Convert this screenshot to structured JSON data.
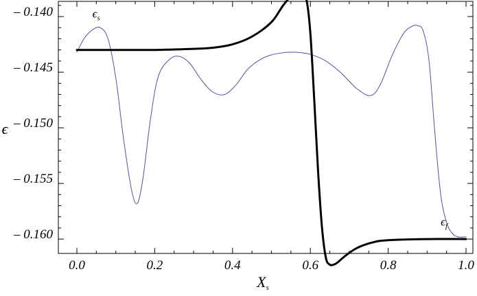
{
  "chart_data": {
    "type": "line",
    "xlabel": "X",
    "xlabel_sub": "s",
    "ylabel": "ϵ",
    "xlim": [
      0.0,
      1.0
    ],
    "ylim": [
      -0.1615,
      -0.1395
    ],
    "xticks": [
      "0.0",
      "0.2",
      "0.4",
      "0.6",
      "0.8",
      "1.0"
    ],
    "xtick_values": [
      0.0,
      0.2,
      0.4,
      0.6,
      0.8,
      1.0
    ],
    "yticks": [
      "– 0.140",
      "– 0.145",
      "– 0.150",
      "– 0.155",
      "– 0.160"
    ],
    "ytick_values": [
      -0.14,
      -0.145,
      -0.15,
      -0.155,
      -0.16
    ],
    "grid": false,
    "series": [
      {
        "color": "#4b4fa8",
        "width": 1,
        "x": [
          0.0,
          0.02,
          0.04,
          0.06,
          0.08,
          0.1,
          0.12,
          0.14,
          0.155,
          0.17,
          0.19,
          0.21,
          0.24,
          0.265,
          0.29,
          0.32,
          0.35,
          0.38,
          0.41,
          0.44,
          0.48,
          0.52,
          0.56,
          0.6,
          0.64,
          0.68,
          0.72,
          0.755,
          0.78,
          0.81,
          0.84,
          0.86,
          0.875,
          0.89,
          0.905,
          0.92,
          0.935,
          0.95,
          0.965,
          0.98,
          1.0
        ],
        "y": [
          -0.1437,
          -0.1424,
          -0.1417,
          -0.1415,
          -0.1425,
          -0.146,
          -0.1515,
          -0.156,
          -0.1573,
          -0.155,
          -0.1495,
          -0.1458,
          -0.1443,
          -0.1441,
          -0.1447,
          -0.1462,
          -0.1473,
          -0.1475,
          -0.1466,
          -0.1452,
          -0.1442,
          -0.1438,
          -0.1437,
          -0.1439,
          -0.1445,
          -0.1456,
          -0.147,
          -0.1476,
          -0.1466,
          -0.144,
          -0.142,
          -0.1414,
          -0.1413,
          -0.1418,
          -0.1445,
          -0.151,
          -0.1565,
          -0.159,
          -0.16,
          -0.1603,
          -0.1603
        ]
      },
      {
        "color": "#000000",
        "width": 3,
        "x": [
          0.0,
          0.1,
          0.2,
          0.3,
          0.35,
          0.4,
          0.45,
          0.5,
          0.53,
          0.555,
          0.575,
          0.59,
          0.6,
          0.61,
          0.62,
          0.63,
          0.64,
          0.65,
          0.66,
          0.67,
          0.69,
          0.72,
          0.76,
          0.8,
          0.9,
          1.0
        ],
        "y": [
          -0.1435,
          -0.1435,
          -0.1435,
          -0.1434,
          -0.1433,
          -0.143,
          -0.1423,
          -0.141,
          -0.1395,
          -0.1385,
          -0.1382,
          -0.139,
          -0.142,
          -0.148,
          -0.1545,
          -0.1595,
          -0.1622,
          -0.1628,
          -0.1628,
          -0.1626,
          -0.162,
          -0.1613,
          -0.1608,
          -0.1606,
          -0.1605,
          -0.1605
        ]
      }
    ],
    "annotations": [
      {
        "text": "ϵ",
        "sub": "s",
        "x": 0.04,
        "y": -0.1406
      },
      {
        "text": "ϵ",
        "sub": "f",
        "x": 0.935,
        "y": -0.1593
      }
    ]
  }
}
